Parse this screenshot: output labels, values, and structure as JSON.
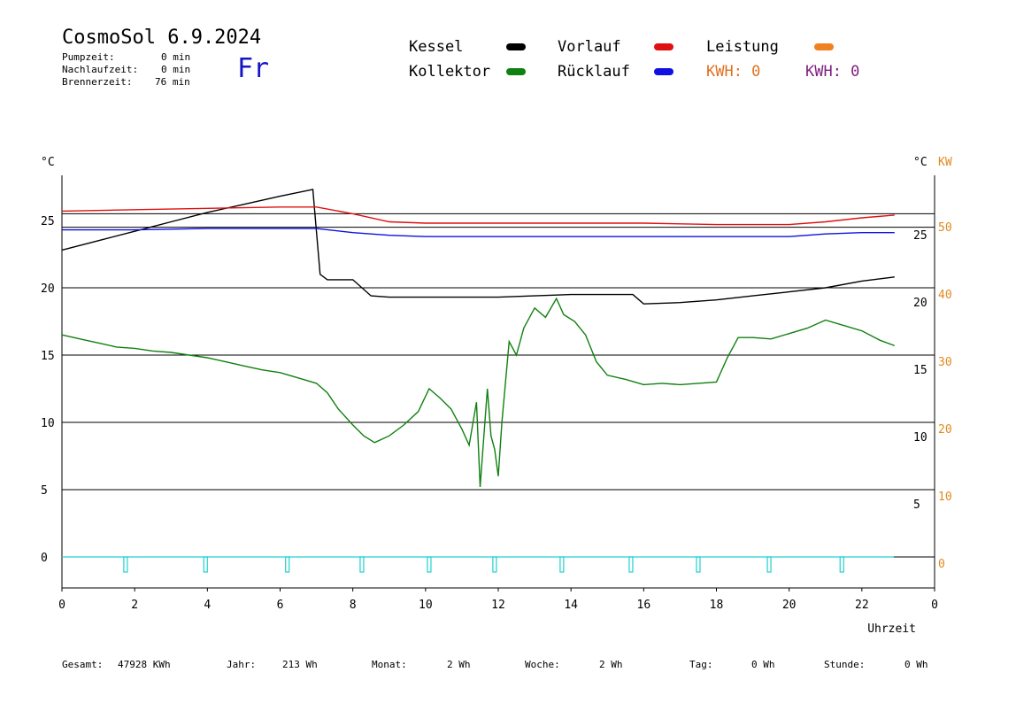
{
  "header": {
    "title": "CosmoSol 6.9.2024",
    "weekday": "Fr",
    "pump_label": "Pumpzeit:",
    "pump_value": "0 min",
    "nachlauf_label": "Nachlaufzeit:",
    "nachlauf_value": "0 min",
    "brenner_label": "Brennerzeit:",
    "brenner_value": "76 min"
  },
  "legend": {
    "kessel": "Kessel",
    "vorlauf": "Vorlauf",
    "leistung": "Leistung",
    "kollektor": "Kollektor",
    "ruecklauf": "Rücklauf",
    "kwh1": "KWH: 0",
    "kwh2": "KWH: 0"
  },
  "colors": {
    "kessel": "#000000",
    "vorlauf": "#e01010",
    "leistung": "#f08020",
    "kollektor": "#108010",
    "ruecklauf": "#1010e0",
    "pump": "#20d0d0",
    "kwh1": "#e07020",
    "kwh2": "#802080"
  },
  "footer": {
    "gesamt_label": "Gesamt:",
    "gesamt_value": "47928 KWh",
    "jahr_label": "Jahr:",
    "jahr_value": "213 Wh",
    "monat_label": "Monat:",
    "monat_value": "2 Wh",
    "woche_label": "Woche:",
    "woche_value": "2 Wh",
    "tag_label": "Tag:",
    "tag_value": "0 Wh",
    "stunde_label": "Stunde:",
    "stunde_value": "0 Wh"
  },
  "chart_data": {
    "type": "line",
    "xlabel": "Uhrzeit",
    "left_unit": "°C",
    "right_unit": "°C",
    "right_unit2": "KW",
    "xlim": [
      0,
      24
    ],
    "ylim": [
      -2.2,
      28.8
    ],
    "x_ticks": [
      "0",
      "2",
      "4",
      "6",
      "8",
      "10",
      "12",
      "14",
      "16",
      "18",
      "20",
      "22",
      "0"
    ],
    "y_ticks_left": [
      "0",
      "5",
      "10",
      "15",
      "20",
      "25"
    ],
    "y_ticks_right": [
      "5",
      "10",
      "15",
      "20",
      "25"
    ],
    "y_ticks_kw": [
      "0",
      "10",
      "20",
      "30",
      "40",
      "50"
    ],
    "gridlines": [
      5,
      10,
      15,
      20,
      24.5,
      25.5
    ],
    "series": [
      {
        "name": "Kessel",
        "color": "#000000",
        "x": [
          0,
          1,
          2,
          3,
          4,
          5,
          6,
          6.9,
          7.1,
          7.3,
          8.0,
          8.5,
          9.0,
          10,
          11,
          12,
          13,
          14,
          15,
          15.7,
          16,
          17,
          18,
          19,
          20,
          21,
          22,
          22.9
        ],
        "y": [
          22.8,
          23.5,
          24.2,
          24.9,
          25.6,
          26.2,
          26.8,
          27.3,
          21,
          20.6,
          20.6,
          19.4,
          19.3,
          19.3,
          19.3,
          19.3,
          19.4,
          19.5,
          19.5,
          19.5,
          18.8,
          18.9,
          19.1,
          19.4,
          19.7,
          20,
          20.5,
          20.8
        ]
      },
      {
        "name": "Vorlauf",
        "color": "#e01010",
        "x": [
          0,
          2,
          4,
          6,
          7,
          8,
          9,
          10,
          12,
          14,
          16,
          18,
          20,
          21,
          22,
          22.9
        ],
        "y": [
          25.7,
          25.8,
          25.9,
          26.0,
          26.0,
          25.5,
          24.9,
          24.8,
          24.8,
          24.8,
          24.8,
          24.7,
          24.7,
          24.9,
          25.2,
          25.4
        ]
      },
      {
        "name": "Rücklauf",
        "color": "#1010e0",
        "x": [
          0,
          2,
          4,
          6,
          7,
          8,
          9,
          10,
          12,
          14,
          16,
          18,
          20,
          21,
          22,
          22.9
        ],
        "y": [
          24.3,
          24.3,
          24.4,
          24.4,
          24.4,
          24.1,
          23.9,
          23.8,
          23.8,
          23.8,
          23.8,
          23.8,
          23.8,
          24.0,
          24.1,
          24.1
        ]
      },
      {
        "name": "Kollektor",
        "color": "#108010",
        "x": [
          0,
          0.5,
          1,
          1.5,
          2,
          2.5,
          3,
          3.5,
          4,
          4.5,
          5,
          5.5,
          6,
          6.5,
          7,
          7.3,
          7.6,
          8,
          8.3,
          8.6,
          9,
          9.4,
          9.8,
          10.1,
          10.4,
          10.7,
          11,
          11.2,
          11.4,
          11.5,
          11.7,
          11.8,
          11.9,
          12,
          12.1,
          12.3,
          12.5,
          12.7,
          13,
          13.3,
          13.6,
          13.8,
          14.1,
          14.4,
          14.7,
          15,
          15.5,
          16,
          16.5,
          17,
          17.5,
          18,
          18.3,
          18.6,
          19,
          19.5,
          20,
          20.5,
          21,
          21.5,
          22,
          22.5,
          22.9
        ],
        "y": [
          16.5,
          16.2,
          15.9,
          15.6,
          15.5,
          15.3,
          15.2,
          15.0,
          14.8,
          14.5,
          14.2,
          13.9,
          13.7,
          13.3,
          12.9,
          12.2,
          11.0,
          9.8,
          9.0,
          8.5,
          9.0,
          9.8,
          10.8,
          12.5,
          11.8,
          11.0,
          9.5,
          8.3,
          11.5,
          5.2,
          12.5,
          9.0,
          8.0,
          6.0,
          10.0,
          16.0,
          15.0,
          17.0,
          18.5,
          17.8,
          19.2,
          18.0,
          17.5,
          16.5,
          14.5,
          13.5,
          13.2,
          12.8,
          12.9,
          12.8,
          12.9,
          13.0,
          14.8,
          16.3,
          16.3,
          16.2,
          16.6,
          17.0,
          17.6,
          17.2,
          16.8,
          16.1,
          15.7
        ]
      }
    ],
    "pump_pulses_x": [
      1.75,
      3.95,
      6.2,
      8.25,
      10.1,
      11.9,
      13.75,
      15.65,
      17.5,
      19.45,
      21.45
    ]
  }
}
